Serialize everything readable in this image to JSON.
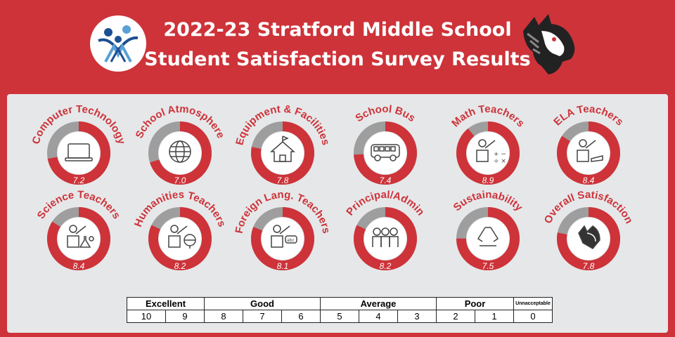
{
  "header": {
    "title_line1": "2022-23 Stratford Middle School",
    "title_line2": "Student Satisfaction Survey Results"
  },
  "colors": {
    "brand_red": "#cd3339",
    "ring_gray": "#9e9e9e",
    "panel": "#e6e7e9"
  },
  "chart_data": {
    "type": "pie",
    "max_value": 10,
    "items": [
      {
        "label": "Computer Technology",
        "value": 7.2,
        "icon": "laptop-icon"
      },
      {
        "label": "School Atmosphere",
        "value": 7.0,
        "icon": "globe-icon"
      },
      {
        "label": "Equipment & Facilities",
        "value": 7.8,
        "icon": "school-house-icon"
      },
      {
        "label": "School Bus",
        "value": 7.4,
        "icon": "bus-icon"
      },
      {
        "label": "Math Teachers",
        "value": 8.9,
        "icon": "math-teacher-icon"
      },
      {
        "label": "ELA Teachers",
        "value": 8.4,
        "icon": "ela-teacher-icon"
      },
      {
        "label": "Science Teachers",
        "value": 8.4,
        "icon": "science-teacher-icon"
      },
      {
        "label": "Humanities Teachers",
        "value": 8.2,
        "icon": "humanities-teacher-icon"
      },
      {
        "label": "Foreign Lang. Teachers",
        "value": 8.1,
        "icon": "language-teacher-icon"
      },
      {
        "label": "Principal/Admin",
        "value": 8.2,
        "icon": "people-group-icon"
      },
      {
        "label": "Sustainability",
        "value": 7.5,
        "icon": "recycle-icon"
      },
      {
        "label": "Overall Satisfaction",
        "value": 7.8,
        "icon": "mustang-icon"
      }
    ]
  },
  "scale": {
    "groups": [
      "Excellent",
      "Good",
      "Average",
      "Poor",
      "Unnacceptable"
    ],
    "values": [
      "10",
      "9",
      "8",
      "7",
      "6",
      "5",
      "4",
      "3",
      "2",
      "1",
      "0"
    ]
  }
}
